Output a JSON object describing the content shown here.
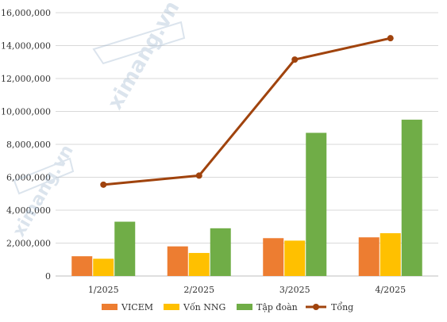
{
  "chart_data": {
    "type": "bar",
    "title": "",
    "xlabel": "",
    "ylabel": "",
    "categories": [
      "1/2025",
      "2/2025",
      "3/2025",
      "4/2025"
    ],
    "ylim": [
      0,
      16000000
    ],
    "yticks": [
      "0",
      "2,000,000",
      "4,000,000",
      "6,000,000",
      "8,000,000",
      "10,000,000",
      "12,000,000",
      "14,000,000",
      "16,000,000"
    ],
    "grid": true,
    "legend_position": "bottom",
    "series": [
      {
        "name": "VICEM",
        "kind": "bar",
        "color": "#ED7D31",
        "values": [
          1200000,
          1800000,
          2300000,
          2350000
        ]
      },
      {
        "name": "Vốn NNG",
        "kind": "bar",
        "color": "#FFC000",
        "values": [
          1050000,
          1400000,
          2150000,
          2600000
        ]
      },
      {
        "name": "Tập đoàn",
        "kind": "bar",
        "color": "#70AD47",
        "values": [
          3300000,
          2900000,
          8700000,
          9500000
        ]
      },
      {
        "name": "Tổng",
        "kind": "line",
        "color": "#A0430D",
        "values": [
          5550000,
          6100000,
          13150000,
          14450000
        ]
      }
    ]
  },
  "watermark": {
    "text": "ximang.vn",
    "color": "#9bb3cc"
  }
}
